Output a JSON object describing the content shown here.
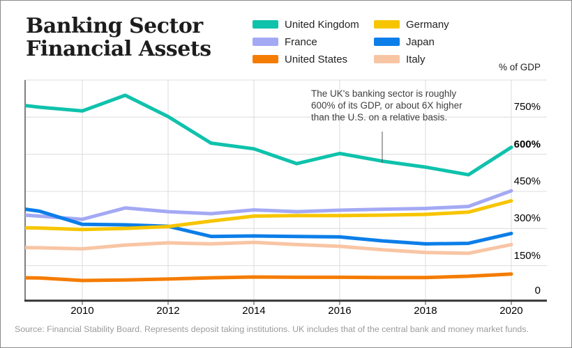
{
  "header": {
    "title": "Banking Sector\nFinancial Assets",
    "unit_label": "% of GDP"
  },
  "annotation": {
    "text": "The UK's banking sector is roughly\n600% of its GDP, or about 6X higher\nthan the U.S. on a relative basis."
  },
  "source": "Source: Financial Stability Board. Represents deposit taking institutions. UK includes that of the central bank and money market funds.",
  "chart_data": {
    "type": "line",
    "title": "Banking Sector Financial Assets",
    "ylabel": "% of GDP",
    "ylim": [
      0,
      900
    ],
    "grid": true,
    "legend_position": "top",
    "x": [
      2008,
      2009,
      2010,
      2011,
      2012,
      2013,
      2014,
      2015,
      2016,
      2017,
      2018,
      2019,
      2020
    ],
    "x_ticks": [
      2010,
      2012,
      2014,
      2016,
      2018,
      2020
    ],
    "y_ticks": [
      {
        "label": "750%",
        "value": 750,
        "bold": false
      },
      {
        "label": "600%",
        "value": 600,
        "bold": true
      },
      {
        "label": "450%",
        "value": 450,
        "bold": false
      },
      {
        "label": "300%",
        "value": 300,
        "bold": false
      },
      {
        "label": "150%",
        "value": 150,
        "bold": false
      },
      {
        "label": "0",
        "value": 0,
        "bold": false
      }
    ],
    "series": [
      {
        "name": "United Kingdom",
        "color": "#0FC2AC",
        "values": [
          810,
          790,
          775,
          838,
          752,
          645,
          622,
          562,
          603,
          572,
          548,
          517,
          628
        ]
      },
      {
        "name": "France",
        "color": "#A4A9F4",
        "values": [
          362,
          350,
          337,
          383,
          368,
          360,
          375,
          368,
          374,
          378,
          381,
          389,
          452
        ]
      },
      {
        "name": "United States",
        "color": "#F57C02",
        "values": [
          102,
          100,
          90,
          92,
          96,
          101,
          104,
          103,
          103,
          102,
          102,
          107,
          116
        ]
      },
      {
        "name": "Germany",
        "color": "#F7C500",
        "values": [
          305,
          302,
          296,
          300,
          308,
          330,
          350,
          352,
          352,
          354,
          357,
          366,
          412
        ]
      },
      {
        "name": "Japan",
        "color": "#0C7EE8",
        "values": [
          394,
          370,
          317,
          315,
          309,
          268,
          270,
          268,
          266,
          250,
          238,
          240,
          280
        ]
      },
      {
        "name": "Italy",
        "color": "#F8C5A4",
        "values": [
          224,
          222,
          218,
          233,
          242,
          238,
          244,
          235,
          228,
          214,
          203,
          200,
          235
        ]
      }
    ],
    "legend_columns": [
      [
        "United Kingdom",
        "France",
        "United States"
      ],
      [
        "Germany",
        "Japan",
        "Italy"
      ]
    ],
    "draw_order": [
      "United States",
      "Italy",
      "France",
      "Japan",
      "Germany",
      "United Kingdom"
    ],
    "annotation_leader": {
      "x": 547,
      "y1": 188,
      "y2": 233
    }
  }
}
